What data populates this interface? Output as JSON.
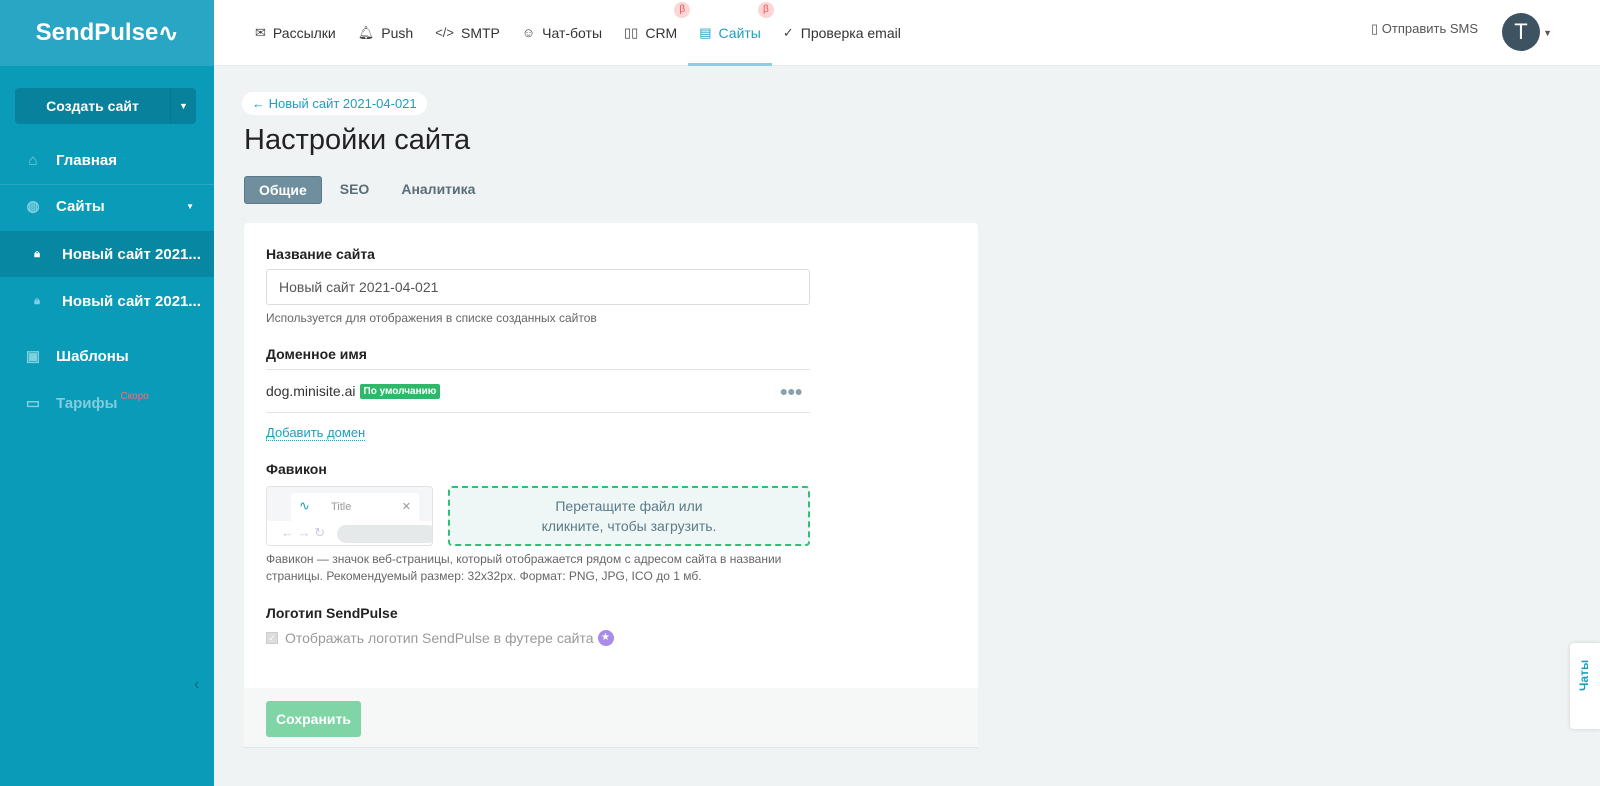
{
  "brand": "SendPulse",
  "topnav": {
    "items": [
      {
        "label": "Рассылки",
        "icon": "envelope-icon"
      },
      {
        "label": "Push",
        "icon": "bell-icon"
      },
      {
        "label": "SMTP",
        "icon": "code-icon"
      },
      {
        "label": "Чат-боты",
        "icon": "chat-icon"
      },
      {
        "label": "CRM",
        "icon": "crm-icon",
        "beta": "β"
      },
      {
        "label": "Сайты",
        "icon": "sites-icon",
        "beta": "β",
        "active": true
      },
      {
        "label": "Проверка email",
        "icon": "check-icon"
      }
    ],
    "send_sms": "Отправить SMS",
    "avatar_letter": "T"
  },
  "sidebar": {
    "create": "Создать сайт",
    "items": [
      {
        "label": "Главная"
      },
      {
        "label": "Сайты"
      },
      {
        "label": "Новый сайт 2021..."
      },
      {
        "label": "Новый сайт 2021..."
      },
      {
        "label": "Шаблоны"
      },
      {
        "label": "Тарифы",
        "badge": "Скоро"
      }
    ]
  },
  "main": {
    "back": "← Новый сайт 2021-04-021",
    "title": "Настройки сайта",
    "tabs": [
      "Общие",
      "SEO",
      "Аналитика"
    ],
    "site_name_label": "Название сайта",
    "site_name_value": "Новый сайт 2021-04-021",
    "site_name_hint": "Используется для отображения в списке созданных сайтов",
    "domain_label": "Доменное имя",
    "domain": "dog.minisite.ai",
    "domain_badge": "По умолчанию",
    "add_domain": "Добавить домен",
    "favicon_label": "Фавикон",
    "favicon_preview_title": "Title",
    "drop_line1": "Перетащите файл или",
    "drop_line2": "кликните, чтобы загрузить.",
    "favicon_hint_1": "Фавикон — значок веб-страницы, который отображается рядом с адресом сайта в названии",
    "favicon_hint_2": "страницы. Рекомендуемый размер: 32x32px. Формат: PNG, JPG, ICO до 1 мб.",
    "logo_label": "Логотип SendPulse",
    "logo_checkbox": "Отображать логотип SendPulse в футере сайта",
    "save": "Сохранить"
  },
  "chats": "Чаты",
  "colors": {
    "sidebar": "#0a9bb8",
    "accent": "#1e9ec0",
    "success": "#2fb86a"
  }
}
